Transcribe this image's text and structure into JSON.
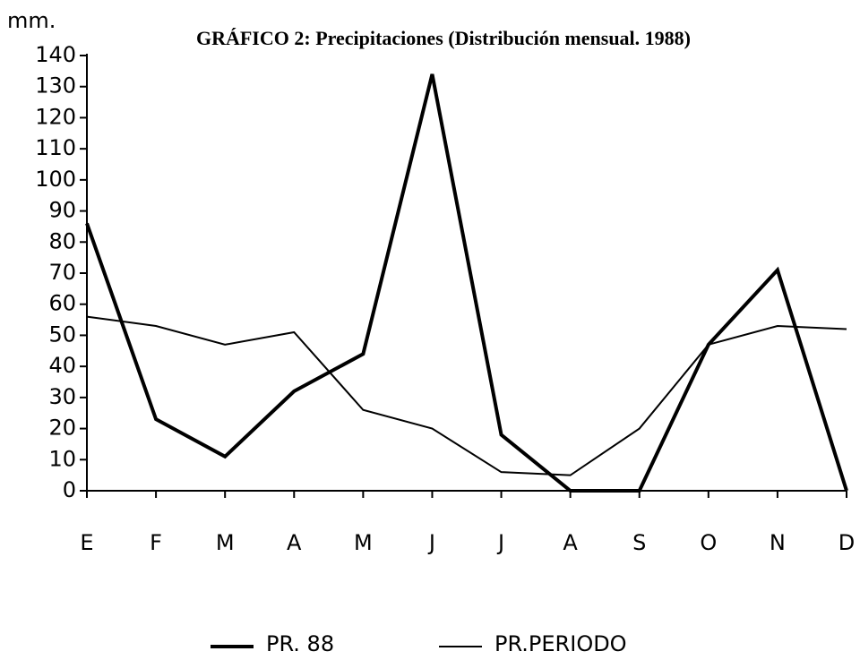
{
  "chart_data": {
    "type": "line",
    "title": "GRÁFICO 2: Precipitaciones (Distribución mensual. 1988)",
    "y_label": "mm.",
    "categories": [
      "E",
      "F",
      "M",
      "A",
      "M",
      "J",
      "J",
      "A",
      "S",
      "O",
      "N",
      "D"
    ],
    "series": [
      {
        "name": "PR. 88",
        "color": "#000000",
        "width": 4,
        "values": [
          86,
          23,
          11,
          32,
          44,
          134,
          18,
          0,
          0,
          47,
          71,
          0
        ]
      },
      {
        "name": "PR.PERIODO",
        "color": "#000000",
        "width": 2,
        "values": [
          56,
          53,
          47,
          51,
          26,
          20,
          6,
          5,
          20,
          47,
          53,
          52
        ]
      }
    ],
    "ylim": [
      0,
      140
    ],
    "yticks": [
      0,
      10,
      20,
      30,
      40,
      50,
      60,
      70,
      80,
      90,
      100,
      110,
      120,
      130,
      140
    ]
  }
}
